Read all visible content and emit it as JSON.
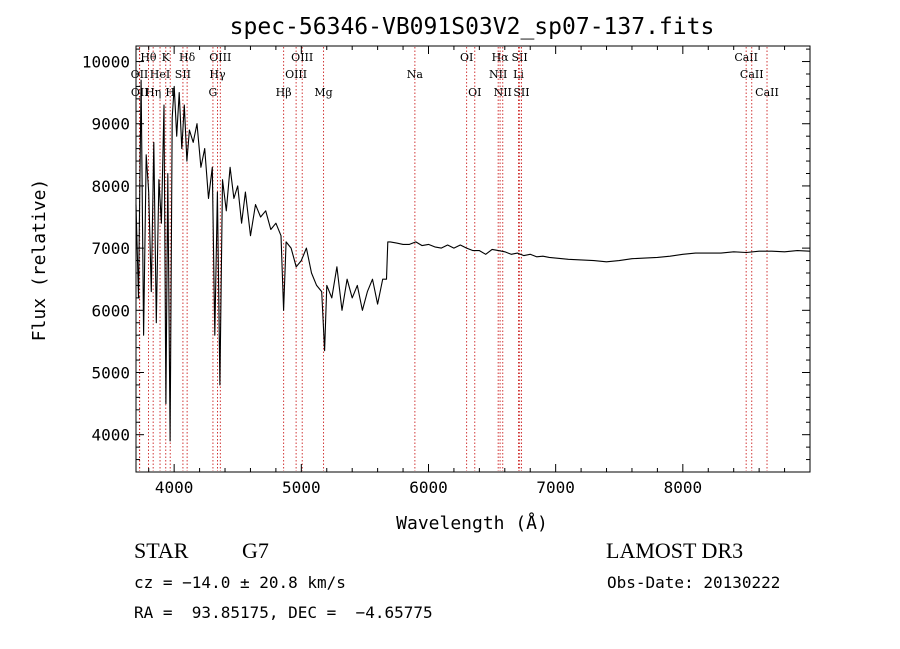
{
  "chart_data": {
    "type": "line",
    "title": "spec-56346-VB091S03V2_sp07-137.fits",
    "xlabel": "Wavelength (Å)",
    "ylabel": "Flux (relative)",
    "xlim": [
      3700,
      9000
    ],
    "ylim": [
      3400,
      10250
    ],
    "x_ticks": [
      4000,
      5000,
      6000,
      7000,
      8000
    ],
    "y_ticks": [
      4000,
      5000,
      6000,
      7000,
      8000,
      9000,
      10000
    ],
    "grid": false,
    "series": [
      {
        "x": [
          3700,
          3720,
          3740,
          3760,
          3780,
          3800,
          3820,
          3840,
          3860,
          3880,
          3900,
          3920,
          3935,
          3950,
          3968,
          3985,
          4000,
          4020,
          4040,
          4060,
          4080,
          4100,
          4120,
          4150,
          4180,
          4210,
          4240,
          4270,
          4300,
          4320,
          4340,
          4360,
          4380,
          4410,
          4440,
          4470,
          4500,
          4530,
          4560,
          4600,
          4640,
          4680,
          4720,
          4760,
          4800,
          4840,
          4861,
          4880,
          4920,
          4960,
          5000,
          5040,
          5080,
          5120,
          5160,
          5183,
          5200,
          5240,
          5280,
          5320,
          5360,
          5400,
          5440,
          5480,
          5520,
          5560,
          5600,
          5640,
          5670,
          5680,
          5700,
          5750,
          5800,
          5850,
          5900,
          5950,
          6000,
          6050,
          6100,
          6150,
          6200,
          6250,
          6300,
          6350,
          6400,
          6450,
          6500,
          6550,
          6600,
          6650,
          6700,
          6750,
          6800,
          6850,
          6900,
          6950,
          7000,
          7100,
          7200,
          7300,
          7400,
          7500,
          7600,
          7700,
          7800,
          7900,
          8000,
          8100,
          8200,
          8300,
          8400,
          8500,
          8600,
          8700,
          8800,
          8900,
          9000
        ],
        "values": [
          7700,
          6200,
          9700,
          5600,
          8500,
          7900,
          6300,
          8700,
          5800,
          8100,
          7400,
          9300,
          4500,
          8200,
          3900,
          9100,
          9600,
          8800,
          9500,
          8600,
          9300,
          8400,
          8900,
          8700,
          9000,
          8300,
          8600,
          7800,
          8300,
          5600,
          7900,
          4800,
          8100,
          7600,
          8300,
          7800,
          8000,
          7400,
          7900,
          7200,
          7700,
          7500,
          7600,
          7300,
          7400,
          7200,
          6000,
          7100,
          7000,
          6700,
          6800,
          7000,
          6600,
          6400,
          6300,
          5350,
          6400,
          6200,
          6700,
          6000,
          6500,
          6200,
          6400,
          6000,
          6300,
          6500,
          6100,
          6500,
          6500,
          7100,
          7100,
          7080,
          7060,
          7060,
          7100,
          7040,
          7060,
          7020,
          7000,
          7050,
          7000,
          7050,
          7000,
          6960,
          6960,
          6900,
          6980,
          6960,
          6940,
          6900,
          6920,
          6880,
          6900,
          6860,
          6870,
          6850,
          6840,
          6820,
          6810,
          6800,
          6780,
          6800,
          6830,
          6840,
          6850,
          6870,
          6900,
          6920,
          6920,
          6920,
          6940,
          6930,
          6950,
          6950,
          6940,
          6960,
          6950
        ]
      }
    ],
    "lines": [
      {
        "label": "Hθ",
        "x": 3798,
        "row": 0
      },
      {
        "label": "OII",
        "x": 3727,
        "row": 1
      },
      {
        "label": "OII",
        "x": 3729,
        "row": 2
      },
      {
        "label": "K",
        "x": 3934,
        "row": 0
      },
      {
        "label": "HeI",
        "x": 3889,
        "row": 1
      },
      {
        "label": "Hη",
        "x": 3835,
        "row": 2
      },
      {
        "label": "SII",
        "x": 4069,
        "row": 1
      },
      {
        "label": "H",
        "x": 3969,
        "row": 2
      },
      {
        "label": "Hδ",
        "x": 4102,
        "row": 0
      },
      {
        "label": "OIII",
        "x": 4363,
        "row": 0
      },
      {
        "label": "Hγ",
        "x": 4341,
        "row": 1
      },
      {
        "label": "G",
        "x": 4305,
        "row": 2
      },
      {
        "label": "Hβ",
        "x": 4861,
        "row": 2
      },
      {
        "label": "OIII",
        "x": 5007,
        "row": 0
      },
      {
        "label": "OIII",
        "x": 4959,
        "row": 1
      },
      {
        "label": "Mg",
        "x": 5175,
        "row": 2
      },
      {
        "label": "Na",
        "x": 5893,
        "row": 1
      },
      {
        "label": "OI",
        "x": 6300,
        "row": 0
      },
      {
        "label": "OI",
        "x": 6364,
        "row": 2
      },
      {
        "label": "Hα",
        "x": 6563,
        "row": 0
      },
      {
        "label": "NII",
        "x": 6548,
        "row": 1
      },
      {
        "label": "NII",
        "x": 6584,
        "row": 2
      },
      {
        "label": "SII",
        "x": 6717,
        "row": 0
      },
      {
        "label": "Li",
        "x": 6708,
        "row": 1
      },
      {
        "label": "SII",
        "x": 6731,
        "row": 2
      },
      {
        "label": "CaII",
        "x": 8498,
        "row": 0
      },
      {
        "label": "CaII",
        "x": 8542,
        "row": 1
      },
      {
        "label": "CaII",
        "x": 8662,
        "row": 2
      }
    ]
  },
  "info": {
    "class": "STAR",
    "subclass": "G7",
    "survey": "LAMOST DR3",
    "cz": "cz = −14.0 ± 20.8 km/s",
    "obs_date": "Obs-Date: 20130222",
    "coords": "RA =  93.85175, DEC =  −4.65775"
  },
  "colors": {
    "spectrum": "#000000",
    "line_marker": "#cc2222"
  }
}
